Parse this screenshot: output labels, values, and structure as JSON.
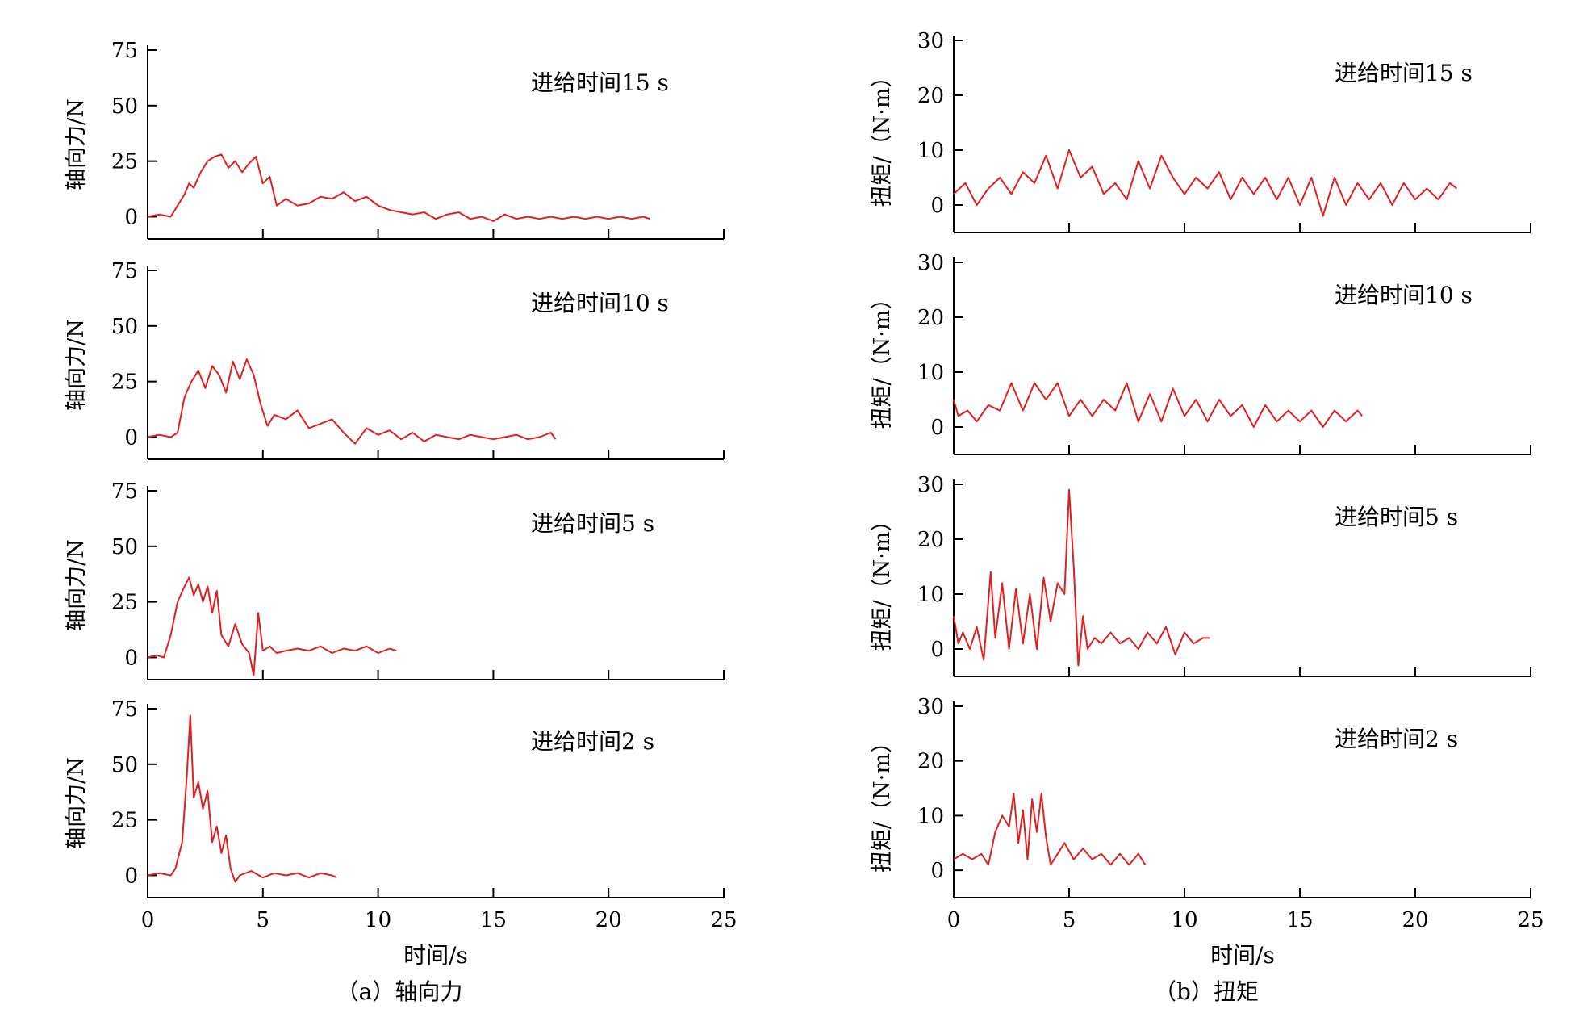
{
  "figure": {
    "captions": [
      "（a）轴向力",
      "（b）扭矩"
    ],
    "xlabel": "时间/s"
  },
  "style": {
    "line_color": "#e02020",
    "axis_color": "#000000"
  },
  "chart_data": [
    {
      "type": "line",
      "panel": "a",
      "row": 0,
      "ylabel": "轴向力/N",
      "annotation": "进给时间15 s",
      "xlim": [
        0,
        25
      ],
      "ylim": [
        -10,
        75
      ],
      "xticks": [
        0,
        5,
        10,
        15,
        20,
        25
      ],
      "yticks": [
        0,
        25,
        50,
        75
      ],
      "x": [
        0,
        0.5,
        1,
        1.3,
        1.6,
        1.8,
        2,
        2.3,
        2.6,
        2.9,
        3.2,
        3.5,
        3.8,
        4.1,
        4.4,
        4.7,
        5,
        5.3,
        5.6,
        6,
        6.5,
        7,
        7.5,
        8,
        8.5,
        9,
        9.5,
        10,
        10.5,
        11,
        11.5,
        12,
        12.5,
        13,
        13.5,
        14,
        14.5,
        15,
        15.5,
        16,
        16.5,
        17,
        17.5,
        18,
        18.5,
        19,
        19.5,
        20,
        20.5,
        21,
        21.5,
        21.8
      ],
      "y": [
        0,
        1,
        0,
        5,
        10,
        15,
        13,
        20,
        25,
        27,
        28,
        22,
        25,
        20,
        24,
        27,
        15,
        18,
        5,
        8,
        5,
        6,
        9,
        8,
        11,
        7,
        9,
        5,
        3,
        2,
        1,
        2,
        -1,
        1,
        2,
        -1,
        0,
        -2,
        1,
        -1,
        0,
        -1,
        0,
        -1,
        0,
        -1,
        0,
        -1,
        0,
        -1,
        0,
        -1
      ]
    },
    {
      "type": "line",
      "panel": "a",
      "row": 1,
      "ylabel": "轴向力/N",
      "annotation": "进给时间10 s",
      "xlim": [
        0,
        25
      ],
      "ylim": [
        -10,
        75
      ],
      "xticks": [
        0,
        5,
        10,
        15,
        20,
        25
      ],
      "yticks": [
        0,
        25,
        50,
        75
      ],
      "x": [
        0,
        0.5,
        1,
        1.3,
        1.6,
        1.9,
        2.2,
        2.5,
        2.8,
        3.1,
        3.4,
        3.7,
        4,
        4.3,
        4.6,
        4.9,
        5.2,
        5.5,
        6,
        6.5,
        7,
        7.5,
        8,
        8.5,
        9,
        9.5,
        10,
        10.5,
        11,
        11.5,
        12,
        12.5,
        13,
        13.5,
        14,
        14.5,
        15,
        15.5,
        16,
        16.5,
        17,
        17.5,
        17.7
      ],
      "y": [
        0,
        1,
        0,
        2,
        18,
        25,
        30,
        22,
        32,
        28,
        20,
        34,
        26,
        35,
        28,
        15,
        5,
        10,
        8,
        12,
        4,
        6,
        8,
        2,
        -3,
        4,
        1,
        3,
        -1,
        2,
        -2,
        1,
        0,
        -1,
        1,
        0,
        -1,
        0,
        1,
        -1,
        0,
        2,
        -1
      ]
    },
    {
      "type": "line",
      "panel": "a",
      "row": 2,
      "ylabel": "轴向力/N",
      "annotation": "进给时间5 s",
      "xlim": [
        0,
        25
      ],
      "ylim": [
        -10,
        75
      ],
      "xticks": [
        0,
        5,
        10,
        15,
        20,
        25
      ],
      "yticks": [
        0,
        25,
        50,
        75
      ],
      "x": [
        0,
        0.4,
        0.7,
        1,
        1.3,
        1.6,
        1.8,
        2,
        2.2,
        2.4,
        2.6,
        2.8,
        3,
        3.2,
        3.5,
        3.8,
        4.1,
        4.4,
        4.6,
        4.8,
        5,
        5.3,
        5.6,
        6,
        6.5,
        7,
        7.5,
        8,
        8.5,
        9,
        9.5,
        10,
        10.5,
        10.8
      ],
      "y": [
        0,
        1,
        0,
        10,
        25,
        32,
        36,
        28,
        33,
        25,
        32,
        20,
        30,
        10,
        5,
        15,
        6,
        2,
        -8,
        20,
        3,
        5,
        2,
        3,
        4,
        3,
        5,
        2,
        4,
        3,
        5,
        2,
        4,
        3
      ]
    },
    {
      "type": "line",
      "panel": "a",
      "row": 3,
      "ylabel": "轴向力/N",
      "annotation": "进给时间2 s",
      "xlim": [
        0,
        25
      ],
      "ylim": [
        -10,
        75
      ],
      "xticks": [
        0,
        5,
        10,
        15,
        20,
        25
      ],
      "yticks": [
        0,
        25,
        50,
        75
      ],
      "x": [
        0,
        0.5,
        1,
        1.2,
        1.5,
        1.7,
        1.85,
        2,
        2.2,
        2.4,
        2.6,
        2.8,
        3,
        3.2,
        3.4,
        3.6,
        3.8,
        4,
        4.5,
        5,
        5.5,
        6,
        6.5,
        7,
        7.5,
        8,
        8.2
      ],
      "y": [
        0,
        1,
        0,
        3,
        15,
        45,
        72,
        35,
        42,
        30,
        38,
        15,
        22,
        10,
        18,
        3,
        -3,
        0,
        2,
        -1,
        1,
        0,
        1,
        -1,
        1,
        0,
        -1
      ]
    },
    {
      "type": "line",
      "panel": "b",
      "row": 0,
      "ylabel": "扭矩/（N·m）",
      "annotation": "进给时间15 s",
      "xlim": [
        0,
        25
      ],
      "ylim": [
        -5,
        30
      ],
      "xticks": [
        0,
        5,
        10,
        15,
        20,
        25
      ],
      "yticks": [
        0,
        10,
        20,
        30
      ],
      "x": [
        0,
        0.5,
        1,
        1.5,
        2,
        2.5,
        3,
        3.5,
        4,
        4.5,
        5,
        5.5,
        6,
        6.5,
        7,
        7.5,
        8,
        8.5,
        9,
        9.5,
        10,
        10.5,
        11,
        11.5,
        12,
        12.5,
        13,
        13.5,
        14,
        14.5,
        15,
        15.5,
        16,
        16.5,
        17,
        17.5,
        18,
        18.5,
        19,
        19.5,
        20,
        20.5,
        21,
        21.5,
        21.8
      ],
      "y": [
        2,
        4,
        0,
        3,
        5,
        2,
        6,
        4,
        9,
        3,
        10,
        5,
        7,
        2,
        4,
        1,
        8,
        3,
        9,
        5,
        2,
        5,
        3,
        6,
        1,
        5,
        2,
        5,
        1,
        5,
        0,
        5,
        -2,
        5,
        0,
        4,
        1,
        4,
        0,
        4,
        1,
        3,
        1,
        4,
        3
      ]
    },
    {
      "type": "line",
      "panel": "b",
      "row": 1,
      "ylabel": "扭矩/（N·m）",
      "annotation": "进给时间10 s",
      "xlim": [
        0,
        25
      ],
      "ylim": [
        -5,
        30
      ],
      "xticks": [
        0,
        5,
        10,
        15,
        20,
        25
      ],
      "yticks": [
        0,
        10,
        20,
        30
      ],
      "x": [
        0,
        0.2,
        0.6,
        1,
        1.5,
        2,
        2.5,
        3,
        3.5,
        4,
        4.5,
        5,
        5.5,
        6,
        6.5,
        7,
        7.5,
        8,
        8.5,
        9,
        9.5,
        10,
        10.5,
        11,
        11.5,
        12,
        12.5,
        13,
        13.5,
        14,
        14.5,
        15,
        15.5,
        16,
        16.5,
        17,
        17.5,
        17.7
      ],
      "y": [
        5,
        2,
        3,
        1,
        4,
        3,
        8,
        3,
        8,
        5,
        8,
        2,
        5,
        2,
        5,
        3,
        8,
        1,
        6,
        1,
        7,
        2,
        5,
        1,
        5,
        2,
        4,
        0,
        4,
        1,
        3,
        1,
        3,
        0,
        3,
        1,
        3,
        2
      ]
    },
    {
      "type": "line",
      "panel": "b",
      "row": 2,
      "ylabel": "扭矩/（N·m）",
      "annotation": "进给时间5 s",
      "xlim": [
        0,
        25
      ],
      "ylim": [
        -5,
        30
      ],
      "xticks": [
        0,
        5,
        10,
        15,
        20,
        25
      ],
      "yticks": [
        0,
        10,
        20,
        30
      ],
      "x": [
        0,
        0.2,
        0.4,
        0.7,
        1,
        1.3,
        1.6,
        1.8,
        2.1,
        2.4,
        2.7,
        3,
        3.3,
        3.6,
        3.9,
        4.2,
        4.5,
        4.8,
        5,
        5.2,
        5.4,
        5.6,
        5.8,
        6.1,
        6.4,
        6.8,
        7.2,
        7.6,
        8,
        8.4,
        8.8,
        9.2,
        9.6,
        10,
        10.4,
        10.8,
        11.1
      ],
      "y": [
        6,
        1,
        3,
        0,
        4,
        -2,
        14,
        2,
        12,
        0,
        11,
        1,
        10,
        0,
        13,
        5,
        12,
        10,
        29,
        15,
        -3,
        6,
        0,
        2,
        1,
        3,
        1,
        2,
        0,
        3,
        1,
        4,
        -1,
        3,
        1,
        2,
        2
      ]
    },
    {
      "type": "line",
      "panel": "b",
      "row": 3,
      "ylabel": "扭矩/（N·m）",
      "annotation": "进给时间2 s",
      "xlim": [
        0,
        25
      ],
      "ylim": [
        -5,
        30
      ],
      "xticks": [
        0,
        5,
        10,
        15,
        20,
        25
      ],
      "yticks": [
        0,
        10,
        20,
        30
      ],
      "x": [
        0,
        0.4,
        0.8,
        1.2,
        1.5,
        1.8,
        2.1,
        2.4,
        2.6,
        2.8,
        3,
        3.2,
        3.4,
        3.6,
        3.8,
        4,
        4.2,
        4.5,
        4.8,
        5.2,
        5.6,
        6,
        6.4,
        6.8,
        7.2,
        7.6,
        8,
        8.3
      ],
      "y": [
        2,
        3,
        2,
        3,
        1,
        7,
        10,
        8,
        14,
        5,
        11,
        2,
        13,
        7,
        14,
        6,
        1,
        3,
        5,
        2,
        4,
        2,
        3,
        1,
        3,
        1,
        3,
        1
      ]
    }
  ]
}
